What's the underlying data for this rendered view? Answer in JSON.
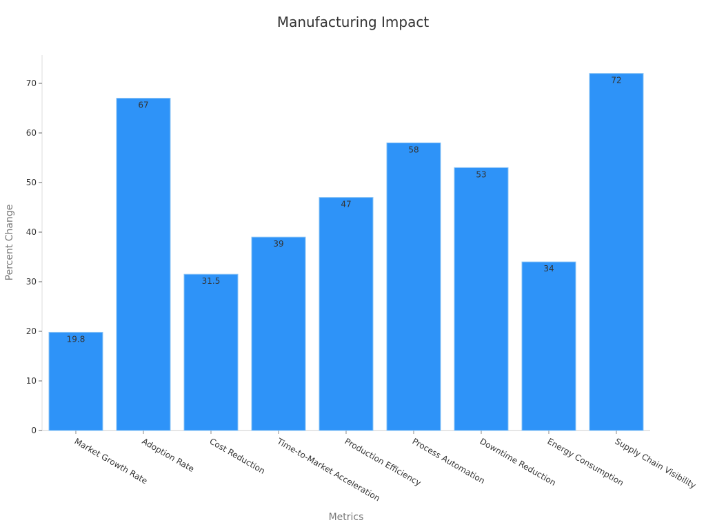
{
  "chart_data": {
    "type": "bar",
    "title": "Manufacturing Impact",
    "xlabel": "Metrics",
    "ylabel": "Percent Change",
    "categories": [
      "Market Growth Rate",
      "Adoption Rate",
      "Cost Reduction",
      "Time-to-Market Acceleration",
      "Production Efficiency",
      "Process Automation",
      "Downtime Reduction",
      "Energy Consumption",
      "Supply Chain Visibility"
    ],
    "values": [
      19.8,
      67,
      31.5,
      39,
      47,
      58,
      53,
      34,
      72
    ],
    "data_labels": [
      "19.8",
      "67",
      "31.5",
      "39",
      "47",
      "58",
      "53",
      "34",
      "72"
    ],
    "ylim": [
      0,
      75.6
    ],
    "yticks": [
      0,
      10,
      20,
      30,
      40,
      50,
      60,
      70
    ],
    "grid": false,
    "legend": null,
    "bar_color": "#2e93f8"
  }
}
